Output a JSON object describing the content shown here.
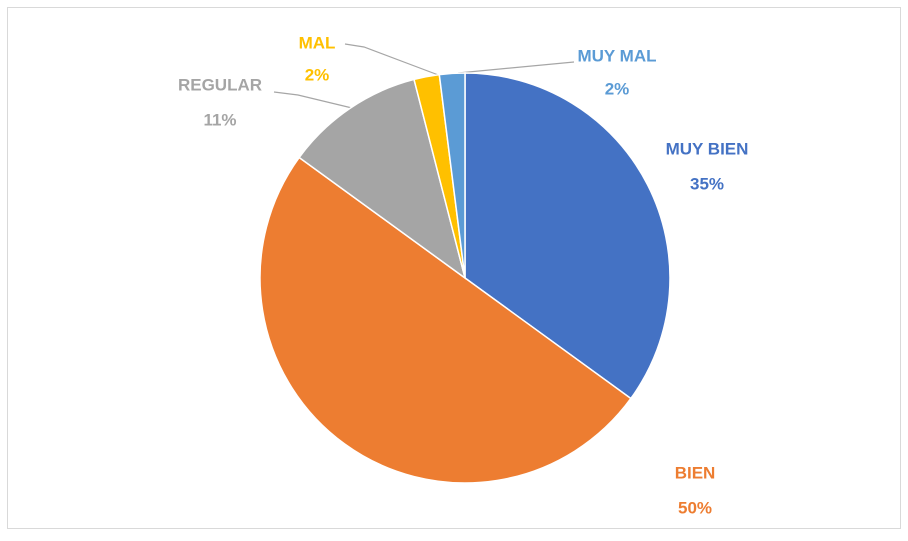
{
  "chart_data": {
    "type": "pie",
    "categories": [
      "MUY BIEN",
      "BIEN",
      "REGULAR",
      "MAL",
      "MUY MAL"
    ],
    "values": [
      35,
      50,
      11,
      2,
      2
    ],
    "value_labels": [
      "35%",
      "50%",
      "11%",
      "2%",
      "2%"
    ],
    "colors": [
      "#4472c4",
      "#ed7d31",
      "#a5a5a5",
      "#ffc000",
      "#5b9bd5"
    ]
  }
}
